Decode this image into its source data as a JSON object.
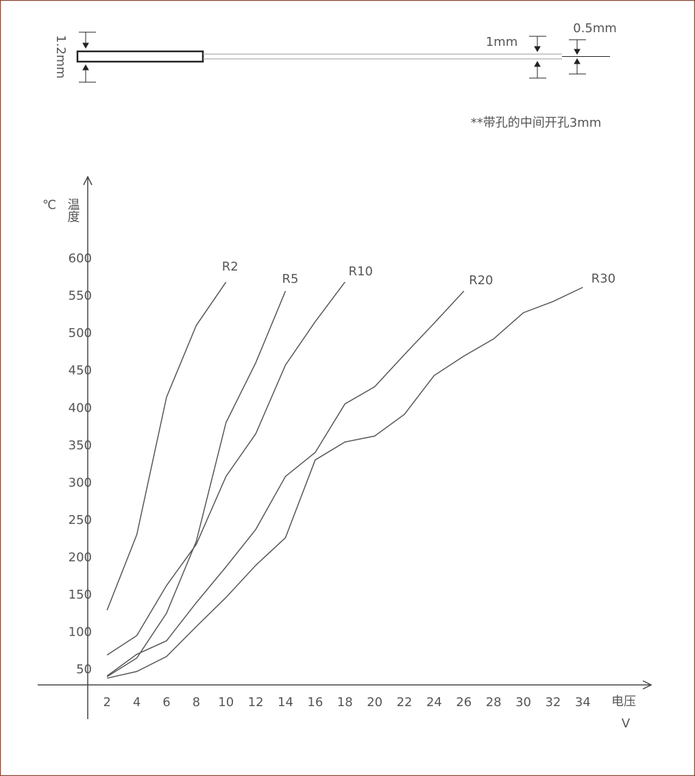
{
  "diagram": {
    "height_label": "1.2mm",
    "thin_label": "1mm",
    "tip_label": "0.5mm",
    "note": "**带孔的中间开孔3mm"
  },
  "chart_data": {
    "type": "line",
    "y_label": "温度",
    "y_unit": "℃",
    "x_label": "电压",
    "x_unit": "V",
    "xlim": [
      0.7,
      38.3
    ],
    "ylim": [
      30,
      710
    ],
    "xticks": [
      2,
      4,
      6,
      8,
      10,
      12,
      14,
      16,
      18,
      20,
      22,
      24,
      26,
      28,
      30,
      32,
      34
    ],
    "yticks": [
      50,
      100,
      150,
      200,
      250,
      300,
      350,
      400,
      450,
      500,
      550,
      600
    ],
    "grid": false,
    "series": [
      {
        "name": "R2",
        "color": "#555555",
        "x": [
          2,
          4,
          6,
          8,
          10
        ],
        "values": [
          130,
          231,
          415,
          511,
          569
        ]
      },
      {
        "name": "R5",
        "color": "#555555",
        "x": [
          2,
          4,
          6,
          8,
          10,
          12,
          14
        ],
        "values": [
          41,
          66,
          126,
          222,
          381,
          461,
          557
        ]
      },
      {
        "name": "R10",
        "color": "#555555",
        "x": [
          2,
          4,
          6,
          8,
          10,
          12,
          14,
          16,
          18
        ],
        "values": [
          70,
          96,
          163,
          218,
          309,
          366,
          458,
          516,
          569
        ]
      },
      {
        "name": "R20",
        "color": "#555555",
        "x": [
          2,
          4,
          6,
          8,
          10,
          12,
          14,
          16,
          18,
          20,
          22,
          24,
          26
        ],
        "values": [
          42,
          71,
          89,
          140,
          188,
          238,
          309,
          341,
          406,
          429,
          472,
          514,
          557
        ]
      },
      {
        "name": "R30",
        "color": "#555555",
        "x": [
          2,
          4,
          6,
          8,
          10,
          12,
          14,
          16,
          18,
          20,
          22,
          24,
          26,
          28,
          30,
          32,
          34
        ],
        "values": [
          39,
          48,
          68,
          108,
          147,
          190,
          227,
          331,
          355,
          363,
          392,
          444,
          470,
          493,
          528,
          543,
          562
        ]
      }
    ]
  }
}
